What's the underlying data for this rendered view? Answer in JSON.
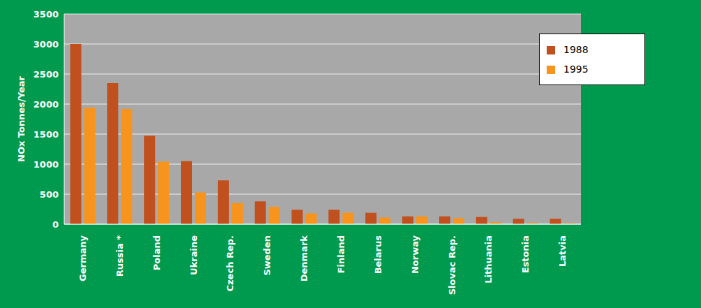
{
  "chart_data": {
    "type": "bar",
    "y_label": "NOx Tonnes/Year",
    "categories": [
      "Germany",
      "Russia *",
      "Poland",
      "Ukraine",
      "Czech Rep.",
      "Sweden",
      "Denmark",
      "Finland",
      "Belarus",
      "Norway",
      "Slovac Rep.",
      "Lithuania",
      "Estonia",
      "Latvia"
    ],
    "series": [
      {
        "name": "1988",
        "color": "#c0501e",
        "values": [
          3000,
          2350,
          1470,
          1050,
          730,
          380,
          240,
          240,
          190,
          130,
          130,
          120,
          90,
          90
        ]
      },
      {
        "name": "1995",
        "color": "#f7941d",
        "values": [
          1940,
          1920,
          1040,
          530,
          350,
          290,
          180,
          190,
          110,
          130,
          100,
          30,
          20,
          15
        ]
      }
    ],
    "ylim": [
      0,
      3500
    ],
    "yticks": [
      0,
      500,
      1000,
      1500,
      2000,
      2500,
      3000,
      3500
    ],
    "grid": true,
    "legend": "upper right"
  }
}
